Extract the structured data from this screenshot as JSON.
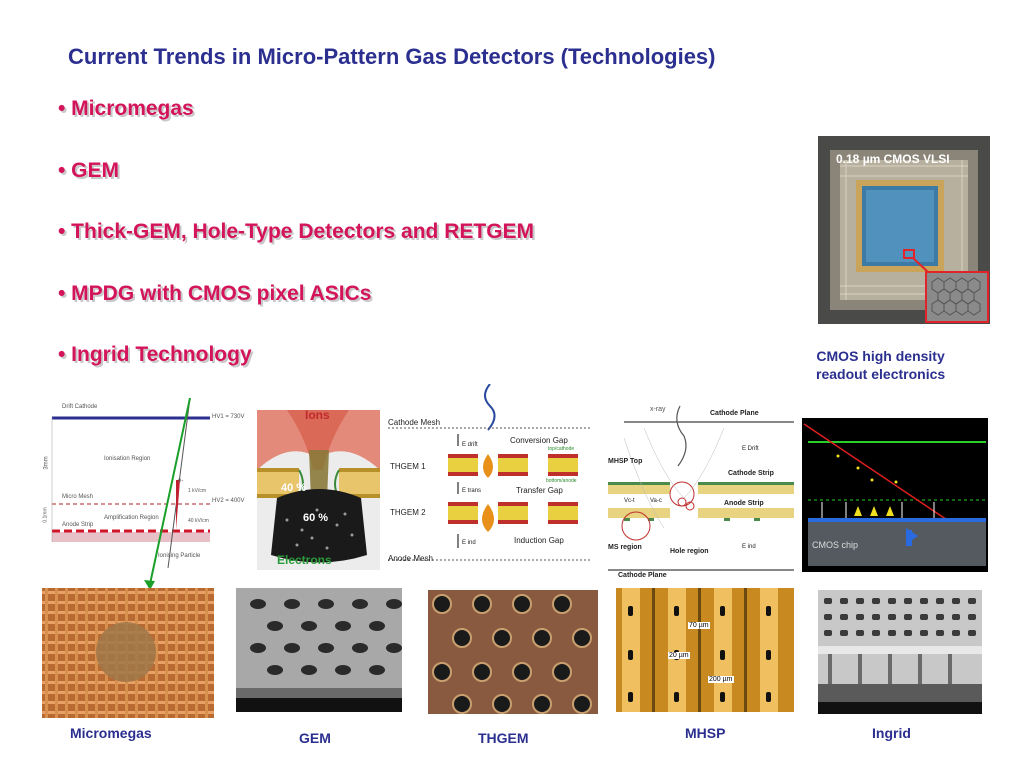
{
  "title": "Current Trends in Micro-Pattern Gas Detectors (Technologies)",
  "bullets": [
    "• Micromegas",
    "• GEM",
    "• Thick-GEM, Hole-Type Detectors and RETGEM",
    "• MPDG with CMOS pixel ASICs",
    "• Ingrid Technology"
  ],
  "cmos": {
    "chip_label": "0.18 µm CMOS VLSI",
    "caption_line1": "CMOS high density",
    "caption_line2": "readout electronics"
  },
  "micromegas_diagram": {
    "drift_cathode": "Drift Cathode",
    "hv1": "HV1 = 730V",
    "ionisation_region": "Ionisation Region",
    "micro_mesh": "Micro Mesh",
    "hv2": "HV2 = 400V",
    "amplification_region": "Amplification Region",
    "anode_strip": "Anode Strip",
    "ionising_particle": "Ionising Particle",
    "field1": "1 kV/cm",
    "field2": "40 kV/cm",
    "gap1": "3mm",
    "gap2": "0.1mm",
    "electron": "e-"
  },
  "gem_diagram": {
    "ions": "Ions",
    "pct1": "40 %",
    "pct2": "60 %",
    "electrons": "Electrons"
  },
  "thgem_diagram": {
    "cathode_mesh": "Cathode Mesh",
    "conversion_gap": "Conversion Gap",
    "thgem1": "THGEM 1",
    "transfer_gap": "Transfer Gap",
    "thgem2": "THGEM 2",
    "induction_gap": "Induction Gap",
    "anode_mesh": "Anode Mesh",
    "top_cathode": "top/cathode",
    "bottom_anode": "bottom/anode",
    "e_drift": "E drift",
    "e_trans": "E trans",
    "e_ind": "E ind"
  },
  "mhsp_diagram": {
    "xray": "x-ray",
    "cathode_plane_top": "Cathode Plane",
    "mhsp_top": "MHSP Top",
    "e_drift": "E Drift",
    "cathode_strip": "Cathode Strip",
    "anode_strip": "Anode Strip",
    "vc_t": "Vc-t",
    "va_c": "Va-c",
    "ms_region": "MS region",
    "hole_region": "Hole region",
    "e_ind": "E ind",
    "cathode_plane_bottom": "Cathode Plane"
  },
  "ingrid_diagram": {
    "cmos_chip": "CMOS chip"
  },
  "mhsp_photo": {
    "m1": "70 µm",
    "m2": "20 µm",
    "m3": "200 µm"
  },
  "captions": {
    "micromegas": "Micromegas",
    "gem": "GEM",
    "thgem": "THGEM",
    "mhsp": "MHSP",
    "ingrid": "Ingrid"
  },
  "colors": {
    "title": "#2b2f8f",
    "bullet": "#d4145a",
    "caption": "#2b2f8f"
  }
}
